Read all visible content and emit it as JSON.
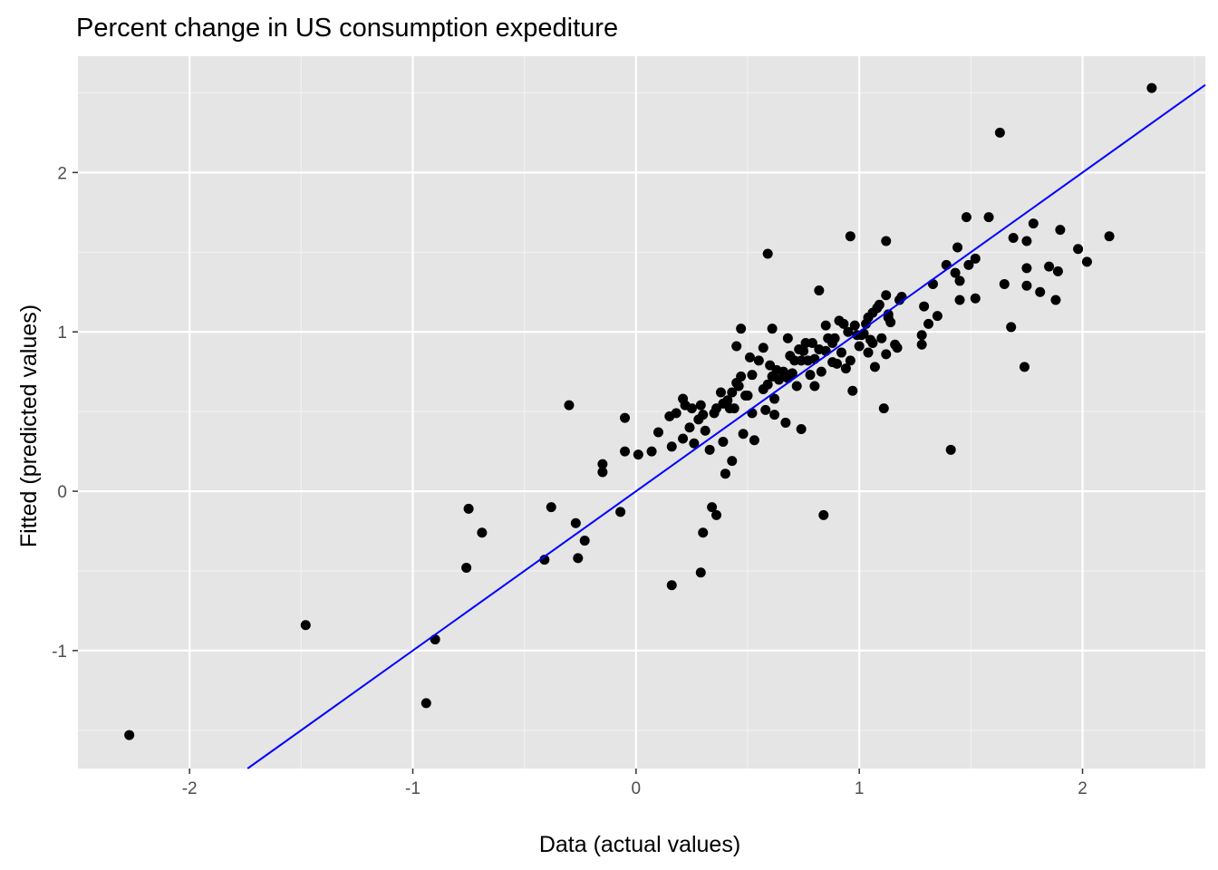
{
  "chart_data": {
    "type": "scatter",
    "title": "Percent change in US consumption expediture",
    "xlabel": "Data (actual values)",
    "ylabel": "Fitted (predicted values)",
    "xlim": [
      -2.5,
      2.55
    ],
    "ylim": [
      -1.74,
      2.73
    ],
    "x_ticks": [
      -2,
      -1,
      0,
      1,
      2
    ],
    "x_tick_labels": [
      "-2",
      "-1",
      "0",
      "1",
      "2"
    ],
    "y_ticks": [
      -1,
      0,
      1,
      2
    ],
    "y_tick_labels": [
      "-1",
      "0",
      "1",
      "2"
    ],
    "grid": true,
    "legend": "none",
    "colors": {
      "panel": "#e5e5e5",
      "grid_major": "#ffffff",
      "grid_minor": "#f2f2f2",
      "points": "#000000",
      "line": "#0000ff",
      "tick_label": "#4d4d4d"
    },
    "reference_line": {
      "slope": 1,
      "intercept": 0
    },
    "points": [
      [
        -2.27,
        -1.53
      ],
      [
        -1.48,
        -0.84
      ],
      [
        -0.94,
        -1.33
      ],
      [
        -0.9,
        -0.93
      ],
      [
        -0.76,
        -0.48
      ],
      [
        -0.75,
        -0.11
      ],
      [
        -0.69,
        -0.26
      ],
      [
        -0.41,
        -0.43
      ],
      [
        -0.38,
        -0.1
      ],
      [
        -0.3,
        0.54
      ],
      [
        -0.27,
        -0.2
      ],
      [
        -0.26,
        -0.42
      ],
      [
        -0.23,
        -0.31
      ],
      [
        -0.15,
        0.12
      ],
      [
        -0.15,
        0.17
      ],
      [
        -0.07,
        -0.13
      ],
      [
        -0.05,
        0.25
      ],
      [
        -0.05,
        0.46
      ],
      [
        0.01,
        0.23
      ],
      [
        0.07,
        0.25
      ],
      [
        0.1,
        0.37
      ],
      [
        0.15,
        0.47
      ],
      [
        0.16,
        0.28
      ],
      [
        0.16,
        -0.59
      ],
      [
        0.18,
        0.49
      ],
      [
        0.21,
        0.58
      ],
      [
        0.21,
        0.33
      ],
      [
        0.22,
        0.54
      ],
      [
        0.24,
        0.4
      ],
      [
        0.25,
        0.52
      ],
      [
        0.26,
        0.3
      ],
      [
        0.28,
        0.45
      ],
      [
        0.29,
        0.54
      ],
      [
        0.29,
        -0.51
      ],
      [
        0.3,
        0.48
      ],
      [
        0.3,
        -0.26
      ],
      [
        0.31,
        0.38
      ],
      [
        0.33,
        0.26
      ],
      [
        0.34,
        -0.1
      ],
      [
        0.35,
        0.49
      ],
      [
        0.36,
        0.52
      ],
      [
        0.36,
        -0.15
      ],
      [
        0.38,
        0.62
      ],
      [
        0.39,
        0.31
      ],
      [
        0.39,
        0.55
      ],
      [
        0.4,
        0.11
      ],
      [
        0.41,
        0.57
      ],
      [
        0.42,
        0.52
      ],
      [
        0.43,
        0.62
      ],
      [
        0.43,
        0.19
      ],
      [
        0.44,
        0.52
      ],
      [
        0.45,
        0.68
      ],
      [
        0.45,
        0.91
      ],
      [
        0.46,
        0.66
      ],
      [
        0.47,
        0.72
      ],
      [
        0.47,
        1.02
      ],
      [
        0.48,
        0.36
      ],
      [
        0.49,
        0.6
      ],
      [
        0.5,
        0.6
      ],
      [
        0.51,
        0.84
      ],
      [
        0.52,
        0.49
      ],
      [
        0.52,
        0.73
      ],
      [
        0.53,
        0.32
      ],
      [
        0.55,
        0.82
      ],
      [
        0.57,
        0.64
      ],
      [
        0.57,
        0.9
      ],
      [
        0.58,
        0.51
      ],
      [
        0.59,
        0.67
      ],
      [
        0.59,
        1.49
      ],
      [
        0.6,
        0.79
      ],
      [
        0.61,
        0.72
      ],
      [
        0.61,
        1.02
      ],
      [
        0.62,
        0.58
      ],
      [
        0.62,
        0.48
      ],
      [
        0.63,
        0.76
      ],
      [
        0.64,
        0.7
      ],
      [
        0.66,
        0.75
      ],
      [
        0.67,
        0.43
      ],
      [
        0.68,
        0.71
      ],
      [
        0.68,
        0.96
      ],
      [
        0.69,
        0.85
      ],
      [
        0.7,
        0.74
      ],
      [
        0.71,
        0.82
      ],
      [
        0.72,
        0.66
      ],
      [
        0.73,
        0.89
      ],
      [
        0.74,
        0.82
      ],
      [
        0.74,
        0.39
      ],
      [
        0.75,
        0.88
      ],
      [
        0.76,
        0.93
      ],
      [
        0.77,
        0.82
      ],
      [
        0.78,
        0.73
      ],
      [
        0.79,
        0.93
      ],
      [
        0.8,
        0.83
      ],
      [
        0.8,
        0.66
      ],
      [
        0.82,
        0.89
      ],
      [
        0.82,
        1.26
      ],
      [
        0.83,
        0.75
      ],
      [
        0.84,
        -0.15
      ],
      [
        0.85,
        0.88
      ],
      [
        0.85,
        1.04
      ],
      [
        0.86,
        0.96
      ],
      [
        0.88,
        0.81
      ],
      [
        0.88,
        0.93
      ],
      [
        0.89,
        0.96
      ],
      [
        0.9,
        0.8
      ],
      [
        0.91,
        1.07
      ],
      [
        0.92,
        0.87
      ],
      [
        0.93,
        1.05
      ],
      [
        0.94,
        0.77
      ],
      [
        0.95,
        1.0
      ],
      [
        0.96,
        1.6
      ],
      [
        0.96,
        0.82
      ],
      [
        0.97,
        0.63
      ],
      [
        0.98,
        1.04
      ],
      [
        0.99,
        0.98
      ],
      [
        1.0,
        0.91
      ],
      [
        1.01,
        0.98
      ],
      [
        1.02,
        0.99
      ],
      [
        1.03,
        1.05
      ],
      [
        1.04,
        1.09
      ],
      [
        1.04,
        0.87
      ],
      [
        1.05,
        0.95
      ],
      [
        1.06,
        1.12
      ],
      [
        1.06,
        0.93
      ],
      [
        1.07,
        0.78
      ],
      [
        1.08,
        1.15
      ],
      [
        1.09,
        1.17
      ],
      [
        1.1,
        0.96
      ],
      [
        1.11,
        0.52
      ],
      [
        1.12,
        0.86
      ],
      [
        1.12,
        1.57
      ],
      [
        1.12,
        1.23
      ],
      [
        1.13,
        1.09
      ],
      [
        1.13,
        1.11
      ],
      [
        1.14,
        1.06
      ],
      [
        1.16,
        0.92
      ],
      [
        1.17,
        0.9
      ],
      [
        1.18,
        1.2
      ],
      [
        1.19,
        1.22
      ],
      [
        1.28,
        0.98
      ],
      [
        1.28,
        0.92
      ],
      [
        1.29,
        1.16
      ],
      [
        1.31,
        1.05
      ],
      [
        1.33,
        1.3
      ],
      [
        1.35,
        1.1
      ],
      [
        1.39,
        1.42
      ],
      [
        1.41,
        0.26
      ],
      [
        1.43,
        1.37
      ],
      [
        1.44,
        1.53
      ],
      [
        1.45,
        1.32
      ],
      [
        1.45,
        1.2
      ],
      [
        1.48,
        1.72
      ],
      [
        1.49,
        1.42
      ],
      [
        1.52,
        1.46
      ],
      [
        1.52,
        1.21
      ],
      [
        1.58,
        1.72
      ],
      [
        1.63,
        2.25
      ],
      [
        1.65,
        1.3
      ],
      [
        1.68,
        1.03
      ],
      [
        1.69,
        1.59
      ],
      [
        1.74,
        0.78
      ],
      [
        1.75,
        1.57
      ],
      [
        1.75,
        1.4
      ],
      [
        1.75,
        1.29
      ],
      [
        1.78,
        1.68
      ],
      [
        1.81,
        1.25
      ],
      [
        1.85,
        1.41
      ],
      [
        1.88,
        1.2
      ],
      [
        1.89,
        1.38
      ],
      [
        1.9,
        1.64
      ],
      [
        1.98,
        1.52
      ],
      [
        2.02,
        1.44
      ],
      [
        2.12,
        1.6
      ],
      [
        2.31,
        2.53
      ]
    ]
  }
}
